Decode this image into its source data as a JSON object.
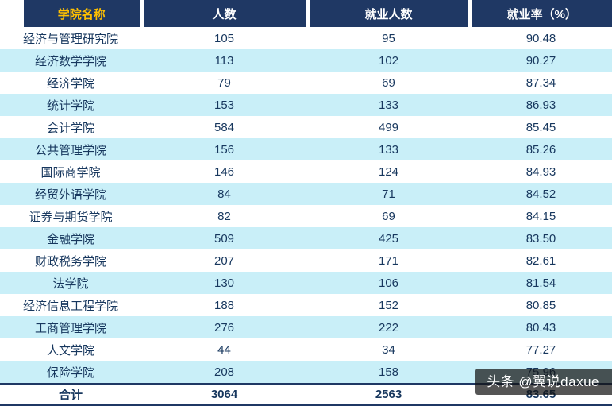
{
  "colors": {
    "header_bg": "#1f3864",
    "header_text": "#ffffff",
    "header_first_text": "#ffc000",
    "stripe": "#c9eff8",
    "text": "#17375e",
    "border": "#1f3864"
  },
  "chart_data": {
    "type": "table",
    "title": "",
    "columns": [
      "学院名称",
      "人数",
      "就业人数",
      "就业率（%）"
    ],
    "rows": [
      [
        "经济与管理研究院",
        "105",
        "95",
        "90.48"
      ],
      [
        "经济数学学院",
        "113",
        "102",
        "90.27"
      ],
      [
        "经济学院",
        "79",
        "69",
        "87.34"
      ],
      [
        "统计学院",
        "153",
        "133",
        "86.93"
      ],
      [
        "会计学院",
        "584",
        "499",
        "85.45"
      ],
      [
        "公共管理学院",
        "156",
        "133",
        "85.26"
      ],
      [
        "国际商学院",
        "146",
        "124",
        "84.93"
      ],
      [
        "经贸外语学院",
        "84",
        "71",
        "84.52"
      ],
      [
        "证券与期货学院",
        "82",
        "69",
        "84.15"
      ],
      [
        "金融学院",
        "509",
        "425",
        "83.50"
      ],
      [
        "财政税务学院",
        "207",
        "171",
        "82.61"
      ],
      [
        "法学院",
        "130",
        "106",
        "81.54"
      ],
      [
        "经济信息工程学院",
        "188",
        "152",
        "80.85"
      ],
      [
        "工商管理学院",
        "276",
        "222",
        "80.43"
      ],
      [
        "人文学院",
        "44",
        "34",
        "77.27"
      ],
      [
        "保险学院",
        "208",
        "158",
        "75.96"
      ]
    ],
    "footer": [
      "合计",
      "3064",
      "2563",
      "83.65"
    ]
  },
  "watermark": {
    "text": "头条 @翼说daxue"
  }
}
